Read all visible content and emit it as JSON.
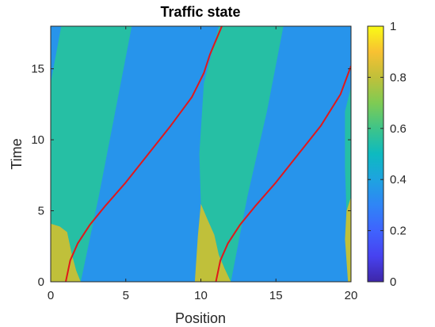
{
  "chart_data": {
    "type": "heatmap",
    "title": "Traffic state",
    "xlabel": "Position",
    "ylabel": "Time",
    "xlim": [
      0,
      20
    ],
    "ylim": [
      0,
      18
    ],
    "x_ticks": [
      "0",
      "5",
      "10",
      "15",
      "20"
    ],
    "y_ticks": [
      "0",
      "5",
      "10",
      "15"
    ],
    "colorbar": {
      "range": [
        0,
        1
      ],
      "ticks": [
        "0",
        "0.2",
        "0.4",
        "0.6",
        "0.8",
        "1"
      ],
      "colormap": "parula"
    },
    "background_density": 0.35,
    "grid": false,
    "regions": [
      {
        "name": "high-density-region-1",
        "density": 0.8,
        "boundary": [
          [
            0,
            0
          ],
          [
            2,
            0
          ],
          [
            1.7,
            0.8
          ],
          [
            1.4,
            2
          ],
          [
            1.1,
            3.5
          ],
          [
            0.6,
            3.9
          ],
          [
            0,
            4.1
          ]
        ]
      },
      {
        "name": "fan-region-1",
        "density": 0.55,
        "boundary": [
          [
            0,
            4.1
          ],
          [
            0.6,
            3.9
          ],
          [
            1.1,
            3.5
          ],
          [
            1.4,
            2
          ],
          [
            1.7,
            0.8
          ],
          [
            2,
            0
          ],
          [
            3.2,
            6
          ],
          [
            4.3,
            12
          ],
          [
            5.4,
            18
          ],
          [
            0.7,
            18
          ],
          [
            0,
            14
          ]
        ]
      },
      {
        "name": "high-density-region-2",
        "density": 0.8,
        "boundary": [
          [
            9.6,
            0
          ],
          [
            12,
            0
          ],
          [
            11.6,
            0.9
          ],
          [
            11.2,
            1.9
          ],
          [
            10.9,
            3.3
          ],
          [
            10.4,
            4.5
          ],
          [
            10,
            5.5
          ],
          [
            9.8,
            3.2
          ]
        ]
      },
      {
        "name": "fan-region-2",
        "density": 0.55,
        "boundary": [
          [
            10,
            5.5
          ],
          [
            10.4,
            4.5
          ],
          [
            10.9,
            3.3
          ],
          [
            11.2,
            1.9
          ],
          [
            11.6,
            0.9
          ],
          [
            12,
            0
          ],
          [
            13.1,
            6
          ],
          [
            14.4,
            12
          ],
          [
            15.5,
            18
          ],
          [
            11.2,
            18
          ],
          [
            10.2,
            14
          ],
          [
            9.9,
            9
          ]
        ]
      },
      {
        "name": "high-density-region-3",
        "density": 0.8,
        "boundary": [
          [
            19.8,
            0
          ],
          [
            20,
            0
          ],
          [
            20,
            6
          ],
          [
            19.7,
            5
          ],
          [
            19.6,
            3
          ]
        ]
      },
      {
        "name": "fan-region-3",
        "density": 0.55,
        "boundary": [
          [
            19.7,
            5
          ],
          [
            20,
            6
          ],
          [
            20,
            13.7
          ],
          [
            19.6,
            12
          ],
          [
            19.6,
            8
          ]
        ]
      }
    ],
    "series": [
      {
        "color": "#e0181b",
        "x": [
          1,
          1.3,
          1.8,
          2.6,
          3.6,
          5,
          6.5,
          8,
          9.4,
          10.2,
          10.6,
          11.4
        ],
        "y": [
          0,
          1.5,
          2.7,
          4,
          5.3,
          7,
          9,
          11,
          13,
          14.7,
          16,
          18
        ]
      },
      {
        "color": "#e0181b",
        "x": [
          11,
          11.3,
          11.8,
          12.6,
          13.6,
          15,
          16.5,
          18,
          19.3,
          20
        ],
        "y": [
          0,
          1.5,
          2.7,
          4,
          5.3,
          7,
          9,
          11,
          13.2,
          15.2
        ]
      }
    ]
  }
}
